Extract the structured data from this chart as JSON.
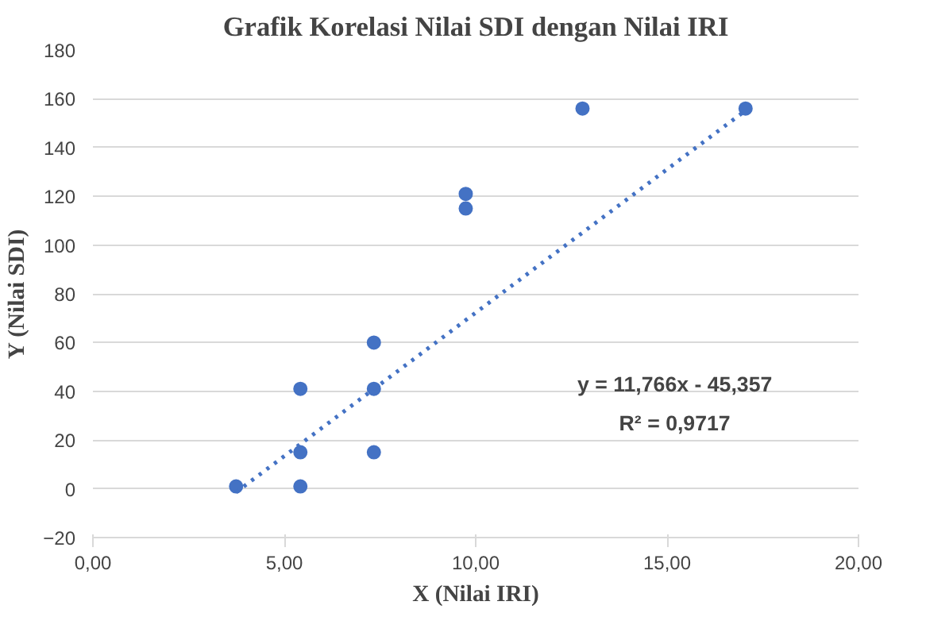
{
  "chart_data": {
    "type": "scatter",
    "title": "Grafik Korelasi Nilai SDI dengan Nilai IRI",
    "xlabel": "X (Nilai IRI)",
    "ylabel": "Y (Nilai SDI)",
    "xlim": [
      0,
      20
    ],
    "ylim": [
      -20,
      180
    ],
    "xticks": [
      {
        "value": 0,
        "label": "0,00"
      },
      {
        "value": 5,
        "label": "5,00"
      },
      {
        "value": 10,
        "label": "10,00"
      },
      {
        "value": 15,
        "label": "15,00"
      },
      {
        "value": 20,
        "label": "20,00"
      }
    ],
    "yticks": [
      -20,
      0,
      20,
      40,
      60,
      80,
      100,
      120,
      140,
      160,
      180
    ],
    "grid": "y",
    "marker": "circle",
    "series": [
      {
        "color": "#4472c4",
        "x": [
          3.74,
          5.42,
          5.42,
          5.42,
          7.34,
          7.34,
          7.34,
          9.74,
          9.74,
          12.79,
          17.05
        ],
        "values": [
          1,
          1,
          15,
          41,
          15,
          41,
          60,
          115,
          121,
          156,
          156
        ]
      },
      {
        "type": "line",
        "color": "#4472c4",
        "line_style": "dotted",
        "marker": "none",
        "x": [
          3.74,
          17.05
        ],
        "values": [
          -1.4,
          155.2
        ]
      }
    ],
    "annotations": [
      "y = 11,766x - 45,357",
      "R² = 0,9717"
    ]
  }
}
